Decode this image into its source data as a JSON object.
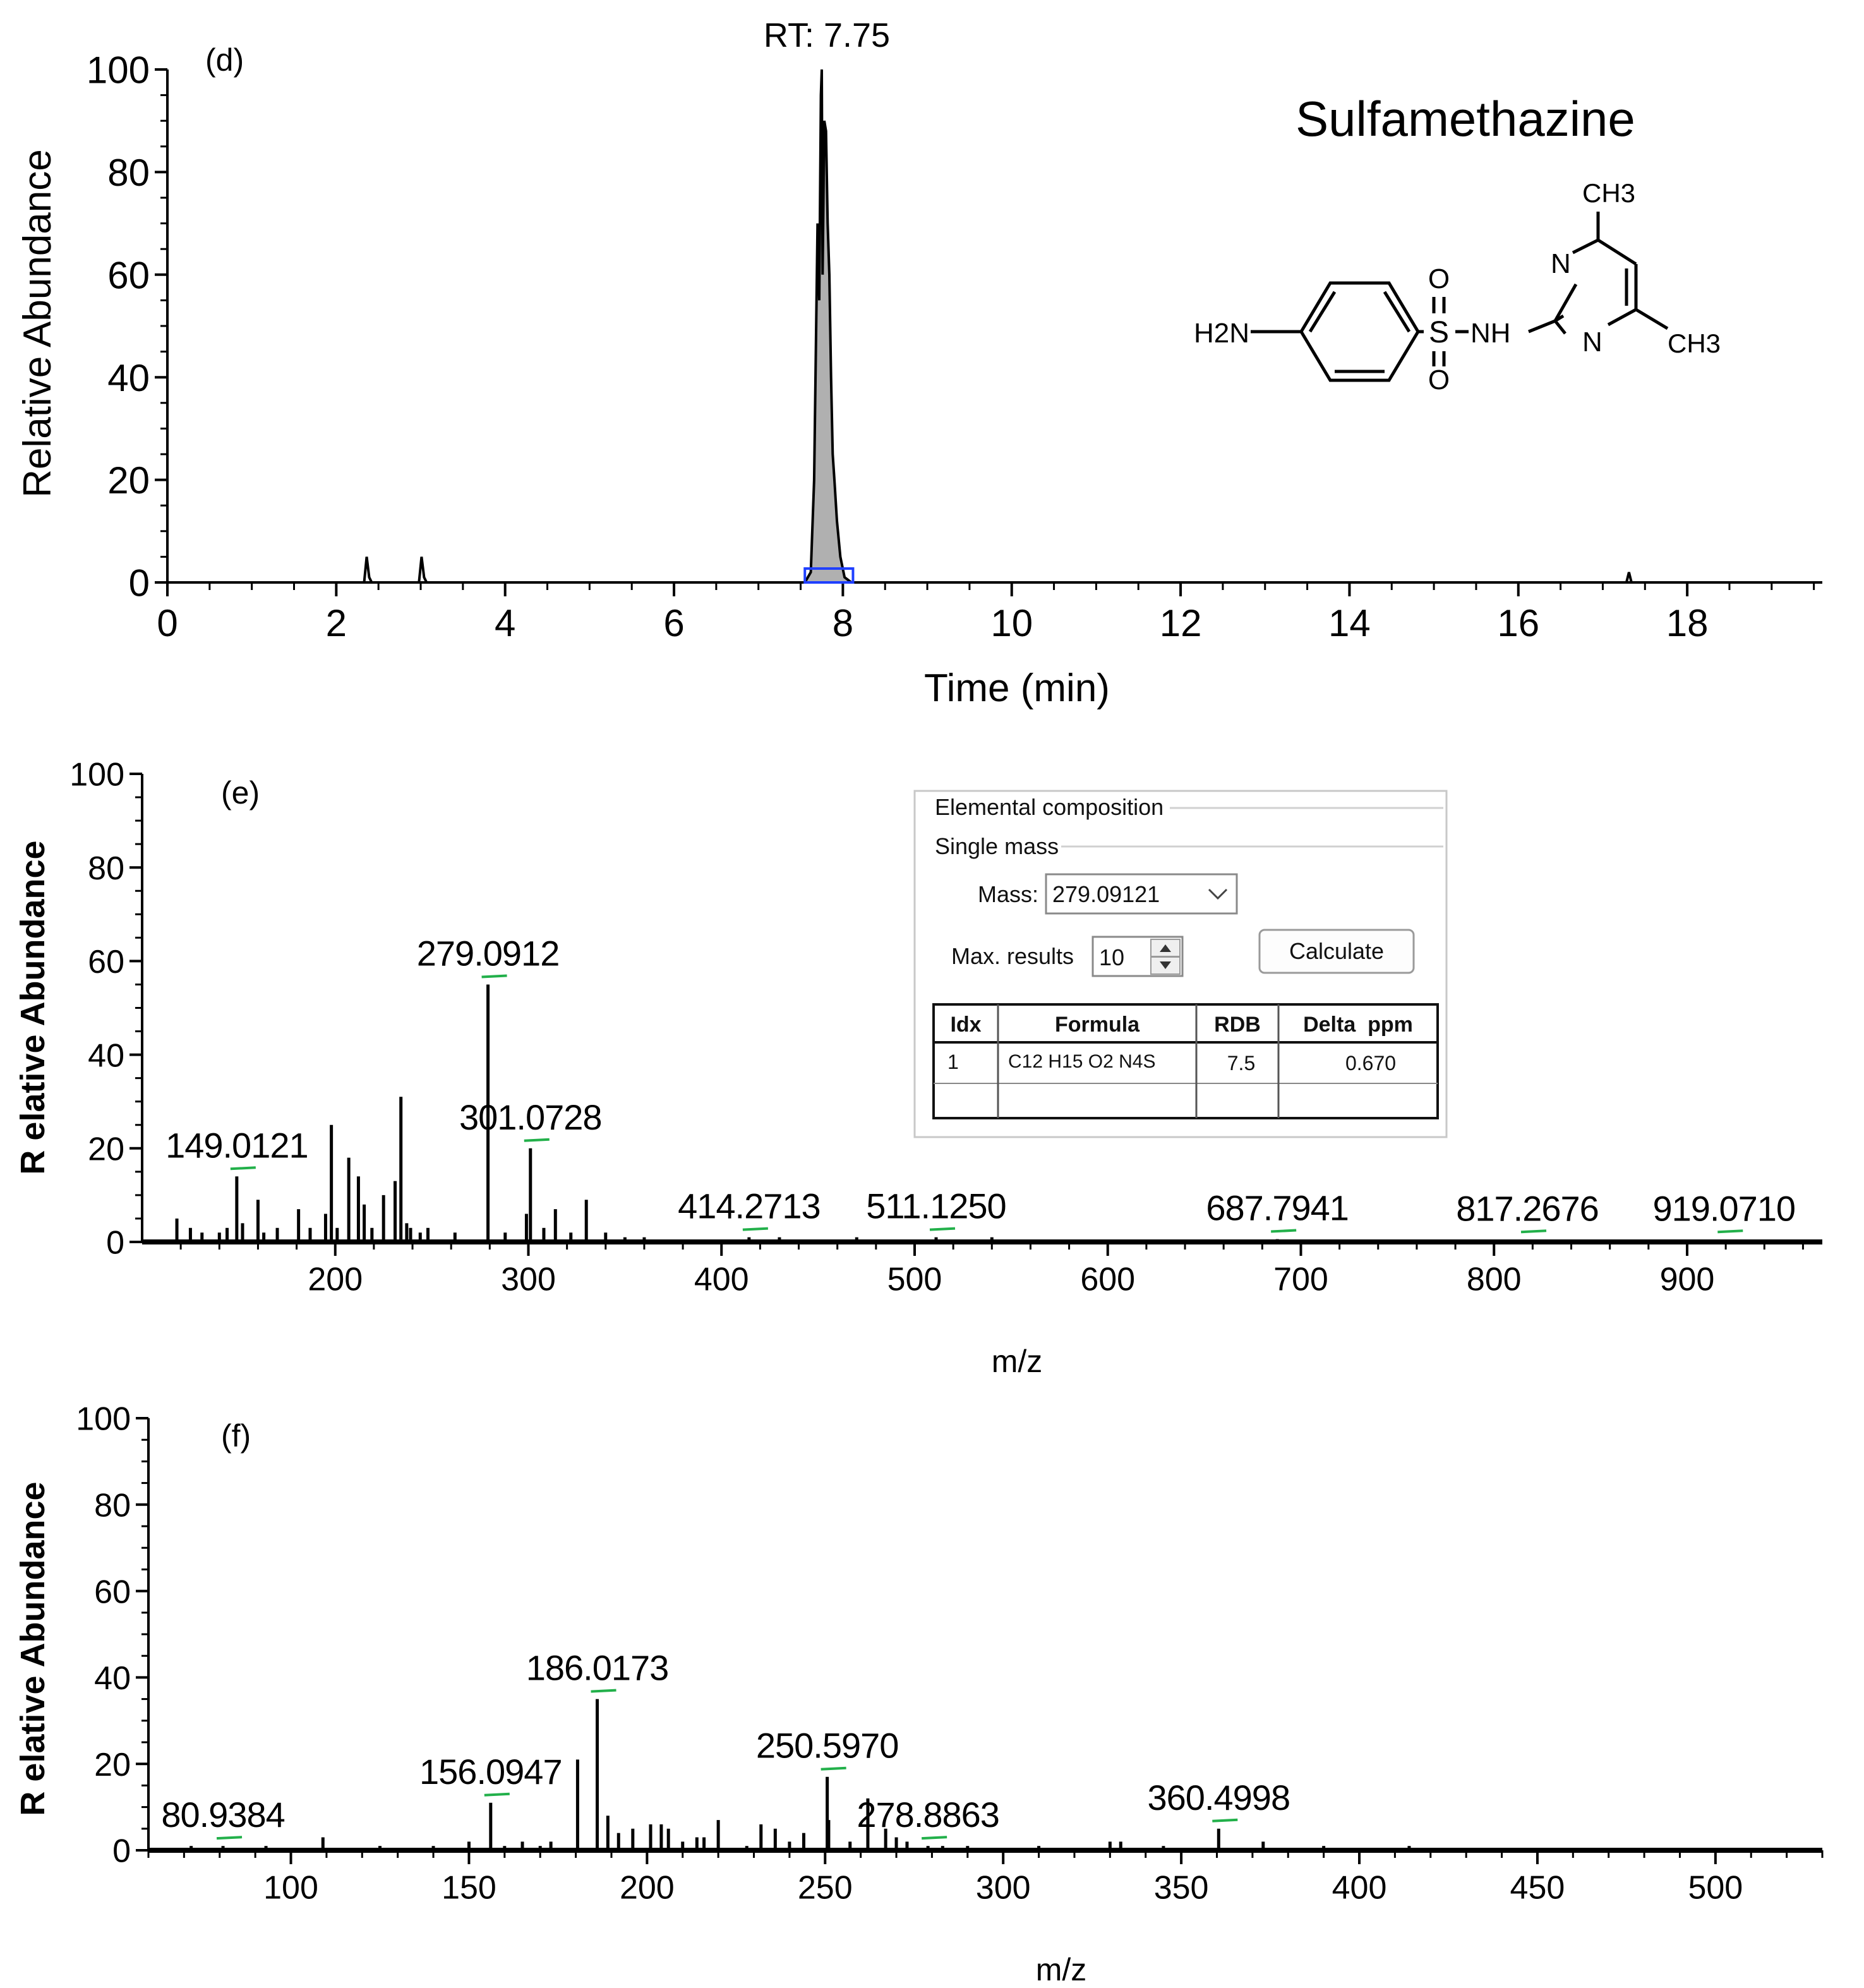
{
  "chart_data": [
    {
      "type": "line",
      "panel_label": "(d)",
      "compound_name": "Sulfamethazine",
      "peak_annotation": "RT: 7.75",
      "xlabel": "Time (min)",
      "ylabel": "Relative Abundance",
      "xlim": [
        0,
        19.6
      ],
      "ylim": [
        0,
        100
      ],
      "x_ticks": [
        0,
        2,
        4,
        6,
        8,
        10,
        12,
        14,
        16,
        18
      ],
      "y_ticks": [
        0,
        20,
        40,
        60,
        80,
        100
      ],
      "series": [
        {
          "x": [
            0,
            2.33,
            2.36,
            2.39,
            2.42,
            2.98,
            3.01,
            3.04,
            3.07,
            7.45,
            7.55,
            7.62,
            7.66,
            7.7,
            7.72,
            7.74,
            7.75,
            7.76,
            7.78,
            7.8,
            7.82,
            7.84,
            7.86,
            7.88,
            7.9,
            7.93,
            7.97,
            8.02,
            8.1,
            17.28,
            17.31,
            17.34,
            19.6
          ],
          "y": [
            0,
            0,
            5,
            1,
            0,
            0,
            5,
            1,
            0,
            0,
            0,
            2,
            20,
            70,
            55,
            95,
            100,
            60,
            90,
            88,
            70,
            60,
            40,
            25,
            20,
            12,
            5,
            1,
            0,
            0,
            2,
            0,
            0
          ]
        }
      ],
      "peak_window_start": 7.55,
      "peak_window_end": 8.12
    },
    {
      "type": "bar",
      "panel_label": "(e)",
      "xlabel": "m/z",
      "ylabel": "R elative Abundance",
      "xlim": [
        100,
        970
      ],
      "ylim": [
        0,
        100
      ],
      "x_ticks": [
        200,
        300,
        400,
        500,
        600,
        700,
        800,
        900
      ],
      "y_ticks": [
        0,
        20,
        40,
        60,
        80,
        100
      ],
      "peaks": {
        "x": [
          118,
          125,
          131,
          140,
          144,
          149.0121,
          152,
          160,
          163,
          170,
          181,
          187,
          195,
          198,
          201,
          207,
          212,
          215,
          219,
          225,
          231,
          234,
          237,
          239,
          244,
          248,
          262,
          279.0912,
          288,
          299,
          301.0728,
          308,
          314,
          322,
          330,
          340,
          350,
          360,
          414.2713,
          430,
          470,
          511.125,
          540,
          687.7941,
          817.2676,
          919.071
        ],
        "y": [
          5,
          3,
          2,
          2,
          3,
          14,
          4,
          9,
          2,
          3,
          7,
          3,
          6,
          25,
          3,
          18,
          14,
          8,
          3,
          10,
          13,
          31,
          4,
          3,
          2,
          3,
          2,
          55,
          2,
          6,
          20,
          3,
          7,
          2,
          9,
          2,
          1,
          1,
          1,
          1,
          1,
          1,
          1,
          0.6,
          0.5,
          0.5
        ]
      },
      "labels": [
        "149.0121",
        "279.0912",
        "301.0728",
        "414.2713",
        "511.1250",
        "687.7941",
        "817.2676",
        "919.0710"
      ],
      "label_mz": [
        149.0121,
        279.0912,
        301.0728,
        414.2713,
        511.125,
        687.7941,
        817.2676,
        919.071
      ],
      "label_height": [
        14,
        55,
        20,
        1,
        1,
        0.6,
        0.5,
        0.5
      ]
    },
    {
      "type": "bar",
      "panel_label": "(f)",
      "xlabel": "m/z",
      "ylabel": "R elative Abundance",
      "xlim": [
        60,
        530
      ],
      "ylim": [
        0,
        100
      ],
      "x_ticks": [
        100,
        150,
        200,
        250,
        300,
        350,
        400,
        450,
        500
      ],
      "y_ticks": [
        0,
        20,
        40,
        60,
        80,
        100
      ],
      "peaks": {
        "x": [
          72,
          80.9384,
          93,
          109,
          125,
          140,
          150,
          156.0947,
          160,
          165,
          170,
          173,
          180.5,
          186.0173,
          189,
          192,
          196,
          201,
          204,
          206,
          210,
          214,
          216,
          220,
          228,
          232,
          236,
          240,
          244,
          250.597,
          251,
          257,
          262,
          267,
          270,
          273,
          278.8863,
          283,
          290,
          310,
          330,
          333,
          345,
          360.4998,
          373,
          390,
          414
        ],
        "y": [
          1,
          1,
          1,
          3,
          1,
          1,
          2,
          11,
          1,
          2,
          1,
          2,
          21,
          35,
          8,
          4,
          5,
          6,
          6,
          5,
          2,
          3,
          3,
          7,
          1,
          6,
          5,
          2,
          4,
          17,
          7,
          2,
          12,
          5,
          3,
          2,
          1,
          1,
          1,
          1,
          2,
          2,
          1,
          5,
          2,
          1,
          1
        ]
      },
      "labels": [
        "80.9384",
        "156.0947",
        "186.0173",
        "250.5970",
        "278.8863",
        "360.4998"
      ],
      "label_mz": [
        80.9384,
        156.0947,
        186.0173,
        250.597,
        278.8863,
        360.4998
      ],
      "label_height": [
        1,
        11,
        35,
        17,
        1,
        5
      ]
    }
  ],
  "structure": {
    "left_group": "H2N",
    "sulfonyl": "S",
    "oxygen": "O",
    "amide": "NH",
    "ring_nitrogen": "N",
    "methyl_top": "CH3",
    "methyl_right": "CH3"
  },
  "elemental_composition": {
    "title": "Elemental composition",
    "section": "Single mass",
    "mass_label": "Mass:",
    "mass_value": "279.09121",
    "max_results_label": "Max. results",
    "max_results_value": "10",
    "calculate_label": "Calculate",
    "columns": [
      "Idx",
      "Formula",
      "RDB",
      "Delta  ppm"
    ],
    "row": {
      "idx": "1",
      "formula": "C12 H15 O2 N4S",
      "rdb": "7.5",
      "delta_ppm": "0.670"
    }
  },
  "colors": {
    "axis": "#000000",
    "peak_fill": "#b0b0b0",
    "peak_window": "#1f3fff",
    "label_marker": "#22b04a",
    "panel_border": "#c8c8c8"
  }
}
